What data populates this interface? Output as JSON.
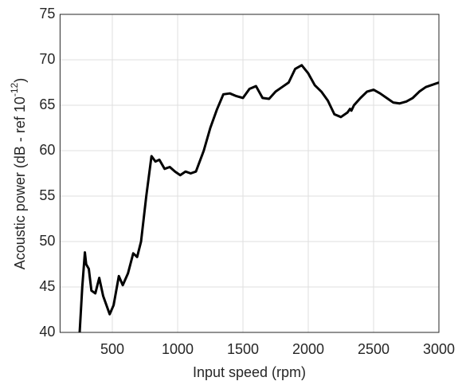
{
  "chart_data": {
    "type": "line",
    "xlabel": "Input speed (rpm)",
    "ylabel": {
      "text": "Acoustic power (dB - ref 10",
      "superscript": "-12",
      "suffix": ")"
    },
    "xlim": [
      100,
      3000
    ],
    "xticks": [
      500,
      1000,
      1500,
      2000,
      2500,
      3000
    ],
    "ylim": [
      40,
      75
    ],
    "yticks": [
      40,
      45,
      50,
      55,
      60,
      65,
      70,
      75
    ],
    "grid": true,
    "series": [
      {
        "color": "#000000",
        "x": [
          250,
          270,
          290,
          300,
          320,
          340,
          370,
          400,
          430,
          480,
          510,
          550,
          580,
          620,
          660,
          690,
          720,
          760,
          800,
          830,
          860,
          900,
          940,
          980,
          1020,
          1060,
          1100,
          1140,
          1200,
          1250,
          1300,
          1350,
          1400,
          1450,
          1500,
          1550,
          1600,
          1650,
          1700,
          1750,
          1800,
          1850,
          1900,
          1950,
          2000,
          2050,
          2100,
          2150,
          2200,
          2250,
          2300,
          2320,
          2330,
          2350,
          2400,
          2450,
          2500,
          2550,
          2600,
          2650,
          2700,
          2750,
          2800,
          2850,
          2900,
          3000
        ],
        "values": [
          40,
          45,
          48.8,
          47.5,
          47,
          44.6,
          44.3,
          46,
          44,
          42,
          43,
          46.2,
          45.2,
          46.5,
          48.7,
          48.3,
          50,
          55,
          59.4,
          58.8,
          59,
          58,
          58.2,
          57.7,
          57.3,
          57.7,
          57.5,
          57.7,
          60,
          62.5,
          64.5,
          66.2,
          66.3,
          66,
          65.8,
          66.8,
          67.1,
          65.8,
          65.7,
          66.5,
          67,
          67.5,
          69,
          69.4,
          68.5,
          67.2,
          66.5,
          65.5,
          64,
          63.7,
          64.2,
          64.6,
          64.4,
          65,
          65.8,
          66.5,
          66.7,
          66.3,
          65.8,
          65.3,
          65.2,
          65.4,
          65.8,
          66.5,
          67,
          67.5
        ]
      }
    ]
  }
}
